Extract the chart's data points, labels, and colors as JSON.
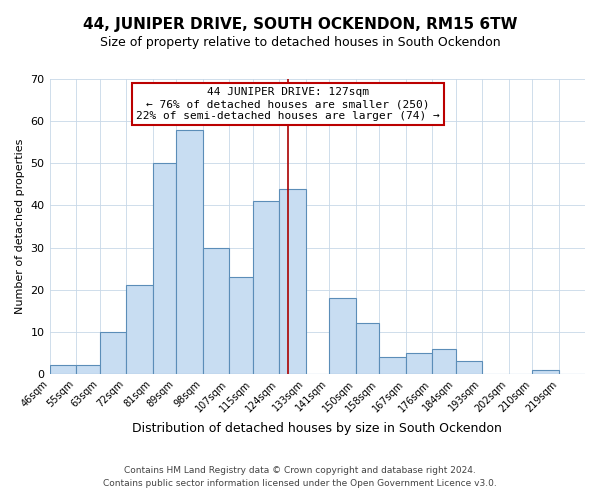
{
  "title": "44, JUNIPER DRIVE, SOUTH OCKENDON, RM15 6TW",
  "subtitle": "Size of property relative to detached houses in South Ockendon",
  "xlabel": "Distribution of detached houses by size in South Ockendon",
  "ylabel": "Number of detached properties",
  "footer_line1": "Contains HM Land Registry data © Crown copyright and database right 2024.",
  "footer_line2": "Contains public sector information licensed under the Open Government Licence v3.0.",
  "annotation_title": "44 JUNIPER DRIVE: 127sqm",
  "annotation_line2": "← 76% of detached houses are smaller (250)",
  "annotation_line3": "22% of semi-detached houses are larger (74) →",
  "property_line_x": 127,
  "bar_edges": [
    46,
    55,
    63,
    72,
    81,
    89,
    98,
    107,
    115,
    124,
    133,
    141,
    150,
    158,
    167,
    176,
    184,
    193,
    202,
    210,
    219
  ],
  "bar_heights": [
    2,
    2,
    10,
    21,
    50,
    58,
    30,
    23,
    41,
    44,
    0,
    18,
    12,
    4,
    5,
    6,
    3,
    0,
    0,
    1,
    0
  ],
  "bar_color": "#c8ddf2",
  "bar_edge_color": "#5b8db8",
  "grid_color": "#c8d8e8",
  "annotation_box_edge_color": "#bb0000",
  "property_line_color": "#aa0000",
  "ylim": [
    0,
    70
  ],
  "yticks": [
    0,
    10,
    20,
    30,
    40,
    50,
    60,
    70
  ],
  "title_fontsize": 11,
  "subtitle_fontsize": 9,
  "xlabel_fontsize": 9,
  "ylabel_fontsize": 8,
  "xtick_fontsize": 7,
  "ytick_fontsize": 8,
  "footer_fontsize": 6.5,
  "annotation_fontsize": 8
}
